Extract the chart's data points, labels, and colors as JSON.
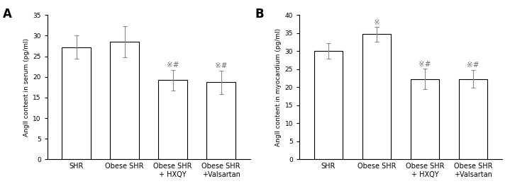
{
  "panel_A": {
    "title": "A",
    "ylabel": "AngII content in serum (pg/ml)",
    "ylim": [
      0,
      35
    ],
    "yticks": [
      0,
      5,
      10,
      15,
      20,
      25,
      30,
      35
    ],
    "categories": [
      "SHR",
      "Obese SHR",
      "Obese SHR\n+ HXQY",
      "Obese SHR\n+Valsartan"
    ],
    "values": [
      27.2,
      28.5,
      19.2,
      18.7
    ],
    "errors": [
      2.8,
      3.8,
      2.5,
      2.8
    ],
    "annotations": [
      "",
      "",
      "※#",
      "※#"
    ]
  },
  "panel_B": {
    "title": "B",
    "ylabel": "AngII content in myocardium (pg/ml)",
    "ylim": [
      0,
      40
    ],
    "yticks": [
      0,
      5,
      10,
      15,
      20,
      25,
      30,
      35,
      40
    ],
    "categories": [
      "SHR",
      "Obese SHR",
      "Obese SHR\n+ HXQY",
      "Obese SHR\n+Valsartan"
    ],
    "values": [
      30.1,
      34.7,
      22.3,
      22.3
    ],
    "errors": [
      2.2,
      2.0,
      2.8,
      2.5
    ],
    "annotations": [
      "",
      "※",
      "※#",
      "※#"
    ]
  },
  "bar_color": "#ffffff",
  "bar_edgecolor": "#000000",
  "error_color": "#888888",
  "annotation_color": "#666666",
  "bar_width": 0.6,
  "title_fontsize": 12,
  "label_fontsize": 6.5,
  "tick_fontsize": 6.5,
  "annot_fontsize": 7.5,
  "xlabel_fontsize": 7
}
